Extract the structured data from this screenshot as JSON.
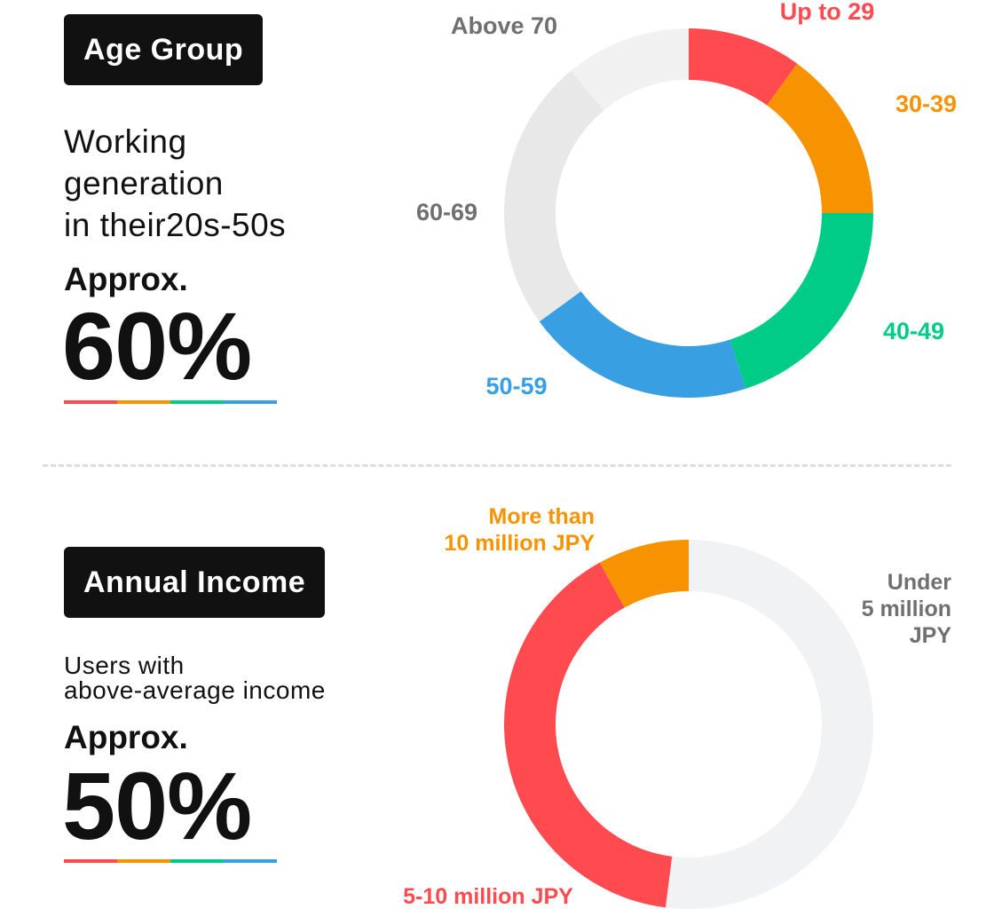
{
  "colors": {
    "red": "#ff4a4f",
    "orange": "#f79300",
    "green": "#00cc88",
    "blue": "#389fe3",
    "lightgray": "#f1f1f1",
    "midgray": "#e8e8e8",
    "incomegray": "#f1f2f4",
    "labelgray": "#707070"
  },
  "age": {
    "tag": "Age Group",
    "desc_lines": [
      "Working",
      "generation",
      "in their20s-50s"
    ],
    "approx": "Approx.",
    "percent": "60%"
  },
  "income": {
    "tag": "Annual Income",
    "desc_lines": [
      "Users with",
      "above-average income"
    ],
    "approx": "Approx.",
    "percent": "50%"
  },
  "chart_data": [
    {
      "type": "pie",
      "title": "",
      "categories": [
        "Up to 29",
        "30-39",
        "40-49",
        "50-59",
        "60-69",
        "Above 70"
      ],
      "values": [
        10,
        15,
        20,
        20,
        24,
        11
      ],
      "colors": [
        "#ff4a4f",
        "#f79300",
        "#00cc88",
        "#389fe3",
        "#e8e8e8",
        "#f1f1f1"
      ],
      "label_colors": [
        "#ff4a4f",
        "#f79300",
        "#00cc88",
        "#389fe3",
        "#707070",
        "#707070"
      ],
      "label_lines": [
        [
          "Up to 29"
        ],
        [
          "30-39"
        ],
        [
          "40-49"
        ],
        [
          "50-59"
        ],
        [
          "60-69"
        ],
        [
          "Above 70"
        ]
      ]
    },
    {
      "type": "pie",
      "title": "",
      "categories": [
        "Under 5 million JPY",
        "5-10 million JPY",
        "More than 10 million JPY"
      ],
      "values": [
        52,
        40,
        8
      ],
      "colors": [
        "#f1f2f4",
        "#ff4a4f",
        "#f79300"
      ],
      "label_colors": [
        "#707070",
        "#ff4a4f",
        "#f79300"
      ],
      "label_lines": [
        [
          "Under",
          "5 million",
          "JPY"
        ],
        [
          "5-10 million JPY"
        ],
        [
          "More than",
          "10 million JPY"
        ]
      ]
    }
  ]
}
